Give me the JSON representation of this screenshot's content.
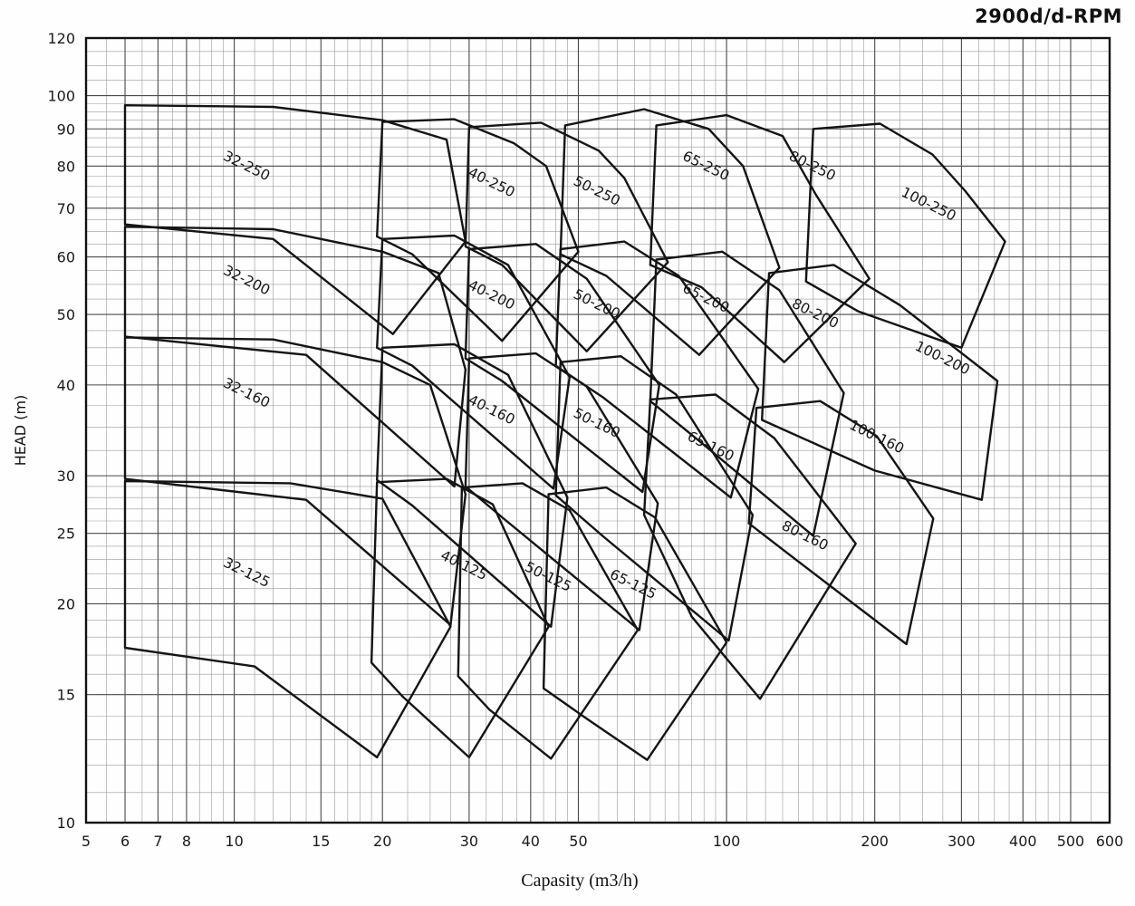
{
  "header": {
    "title": "2900d/d-RPM"
  },
  "chart_data": {
    "type": "line",
    "subtype": "pump-selection-envelope-chart",
    "title": "2900d/d-RPM",
    "xlabel": "Capasity (m3/h)",
    "ylabel": "HEAD (m)",
    "x_scale": "log",
    "y_scale": "log",
    "xlim": [
      5,
      600
    ],
    "ylim": [
      10,
      120
    ],
    "x_ticks": [
      5,
      6,
      7,
      8,
      10,
      15,
      20,
      30,
      40,
      50,
      100,
      200,
      300,
      400,
      500,
      600
    ],
    "y_ticks": [
      10,
      15,
      20,
      25,
      30,
      40,
      50,
      60,
      70,
      80,
      90,
      100,
      120
    ],
    "grid": true,
    "legend": false,
    "envelopes": [
      {
        "label": "32-250",
        "label_pos": [
          10.5,
          79
        ],
        "points": [
          [
            6,
            97
          ],
          [
            12,
            96.5
          ],
          [
            20,
            92.5
          ],
          [
            27,
            87
          ],
          [
            29.5,
            63
          ],
          [
            21,
            47
          ],
          [
            12,
            63.5
          ],
          [
            6,
            66.5
          ]
        ]
      },
      {
        "label": "40-250",
        "label_pos": [
          33,
          75
        ],
        "points": [
          [
            20,
            92
          ],
          [
            28,
            92.8
          ],
          [
            37,
            86
          ],
          [
            43,
            80
          ],
          [
            50,
            61
          ],
          [
            35,
            46
          ],
          [
            23,
            60.5
          ],
          [
            19.5,
            64
          ]
        ]
      },
      {
        "label": "50-250",
        "label_pos": [
          54,
          73
        ],
        "points": [
          [
            30,
            90.5
          ],
          [
            42,
            91.8
          ],
          [
            55,
            84
          ],
          [
            62,
            77
          ],
          [
            76,
            59
          ],
          [
            52,
            44.5
          ],
          [
            35,
            58.5
          ],
          [
            29.5,
            62
          ]
        ]
      },
      {
        "label": "65-250",
        "label_pos": [
          90,
          79
        ],
        "points": [
          [
            47,
            91
          ],
          [
            68,
            95.8
          ],
          [
            92,
            90
          ],
          [
            108,
            80
          ],
          [
            128,
            58
          ],
          [
            88,
            44
          ],
          [
            57,
            56.5
          ],
          [
            46,
            60.5
          ]
        ]
      },
      {
        "label": "80-250",
        "label_pos": [
          148,
          79
        ],
        "points": [
          [
            72,
            91
          ],
          [
            100,
            94
          ],
          [
            130,
            88
          ],
          [
            152,
            73
          ],
          [
            195,
            56
          ],
          [
            131,
            43
          ],
          [
            89,
            54.5
          ],
          [
            70,
            58.5
          ]
        ]
      },
      {
        "label": "100-250",
        "label_pos": [
          255,
          70
        ],
        "points": [
          [
            150,
            90
          ],
          [
            205,
            91.5
          ],
          [
            262,
            83
          ],
          [
            305,
            74
          ],
          [
            368,
            63
          ],
          [
            300,
            45
          ],
          [
            185,
            50.5
          ],
          [
            145,
            55.5
          ]
        ]
      },
      {
        "label": "32-200",
        "label_pos": [
          10.5,
          55
        ],
        "points": [
          [
            6,
            66
          ],
          [
            12,
            65.5
          ],
          [
            20,
            61
          ],
          [
            26,
            57
          ],
          [
            29.5,
            42
          ],
          [
            28,
            29
          ],
          [
            14,
            44
          ],
          [
            6,
            46.6
          ]
        ]
      },
      {
        "label": "40-200",
        "label_pos": [
          33,
          52.5
        ],
        "points": [
          [
            20,
            63.5
          ],
          [
            28,
            64.2
          ],
          [
            36,
            58.5
          ],
          [
            48,
            41
          ],
          [
            44.5,
            28.8
          ],
          [
            23,
            42.5
          ],
          [
            19.5,
            45
          ]
        ]
      },
      {
        "label": "50-200",
        "label_pos": [
          54,
          51
        ],
        "points": [
          [
            30,
            61.5
          ],
          [
            41,
            62.5
          ],
          [
            52,
            56
          ],
          [
            73,
            40
          ],
          [
            67.5,
            28.5
          ],
          [
            35,
            40.5
          ],
          [
            29.5,
            43.5
          ]
        ]
      },
      {
        "label": "65-200",
        "label_pos": [
          90,
          52
        ],
        "points": [
          [
            46,
            61.5
          ],
          [
            62,
            63
          ],
          [
            80,
            56.5
          ],
          [
            116,
            39.5
          ],
          [
            102,
            28
          ],
          [
            56,
            38.5
          ],
          [
            45,
            42.5
          ]
        ]
      },
      {
        "label": "80-200",
        "label_pos": [
          150,
          49.5
        ],
        "points": [
          [
            72,
            59.5
          ],
          [
            98,
            61
          ],
          [
            128,
            54
          ],
          [
            173,
            39
          ],
          [
            150,
            24.8
          ],
          [
            88,
            33.5
          ],
          [
            70,
            38
          ]
        ]
      },
      {
        "label": "100-200",
        "label_pos": [
          272,
          43
        ],
        "points": [
          [
            122,
            57
          ],
          [
            165,
            58.5
          ],
          [
            225,
            51.5
          ],
          [
            355,
            40.5
          ],
          [
            330,
            27.8
          ],
          [
            200,
            30.5
          ],
          [
            118,
            35.8
          ]
        ]
      },
      {
        "label": "32-160",
        "label_pos": [
          10.5,
          38.5
        ],
        "points": [
          [
            6,
            46.5
          ],
          [
            12,
            46.2
          ],
          [
            20,
            43
          ],
          [
            25,
            40
          ],
          [
            29.5,
            28.3
          ],
          [
            27.5,
            18.7
          ],
          [
            14,
            27.8
          ],
          [
            6,
            29.7
          ]
        ]
      },
      {
        "label": "40-160",
        "label_pos": [
          33,
          36.5
        ],
        "points": [
          [
            20,
            45
          ],
          [
            28,
            45.5
          ],
          [
            36,
            41.3
          ],
          [
            47.5,
            28
          ],
          [
            44,
            18.6
          ],
          [
            23,
            27.3
          ],
          [
            19.5,
            29.6
          ]
        ]
      },
      {
        "label": "50-160",
        "label_pos": [
          54,
          35
        ],
        "points": [
          [
            30,
            43.5
          ],
          [
            41,
            44.2
          ],
          [
            52,
            39.8
          ],
          [
            72.5,
            27.5
          ],
          [
            66.5,
            18.4
          ],
          [
            35,
            26.3
          ],
          [
            29.5,
            29
          ]
        ]
      },
      {
        "label": "65-160",
        "label_pos": [
          92,
          32.5
        ],
        "points": [
          [
            46,
            43
          ],
          [
            61,
            43.8
          ],
          [
            79,
            38.8
          ],
          [
            113,
            26.5
          ],
          [
            101,
            17.8
          ],
          [
            56,
            24.8
          ],
          [
            45,
            28.2
          ]
        ]
      },
      {
        "label": "80-160",
        "label_pos": [
          143,
          24.5
        ],
        "points": [
          [
            70,
            38.2
          ],
          [
            95,
            38.8
          ],
          [
            125,
            33.8
          ],
          [
            183,
            24.2
          ],
          [
            117,
            14.8
          ],
          [
            85,
            19.2
          ],
          [
            68,
            26.5
          ]
        ]
      },
      {
        "label": "100-160",
        "label_pos": [
          200,
          33.5
        ],
        "points": [
          [
            115,
            37.2
          ],
          [
            155,
            38
          ],
          [
            202,
            34
          ],
          [
            263,
            26.2
          ],
          [
            232,
            17.6
          ],
          [
            136,
            23.2
          ],
          [
            111,
            25.8
          ]
        ]
      },
      {
        "label": "32-125",
        "label_pos": [
          10.5,
          21.8
        ],
        "points": [
          [
            6,
            29.5
          ],
          [
            13,
            29.3
          ],
          [
            20,
            27.9
          ],
          [
            27.5,
            18.6
          ],
          [
            19.5,
            12.3
          ],
          [
            11,
            16.4
          ],
          [
            6,
            17.4
          ]
        ]
      },
      {
        "label": "40-125",
        "label_pos": [
          29,
          22.3
        ],
        "points": [
          [
            19.5,
            29.4
          ],
          [
            27,
            29.7
          ],
          [
            33.5,
            27.4
          ],
          [
            43.5,
            18.6
          ],
          [
            30,
            12.3
          ],
          [
            22,
            14.9
          ],
          [
            19,
            16.6
          ]
        ]
      },
      {
        "label": "50-125",
        "label_pos": [
          43,
          21.5
        ],
        "points": [
          [
            29,
            28.9
          ],
          [
            38.5,
            29.3
          ],
          [
            48,
            26.9
          ],
          [
            66,
            18.4
          ],
          [
            44,
            12.25
          ],
          [
            33,
            14.3
          ],
          [
            28.5,
            15.9
          ]
        ]
      },
      {
        "label": "65-125",
        "label_pos": [
          64,
          21
        ],
        "points": [
          [
            43.5,
            28.3
          ],
          [
            57,
            28.9
          ],
          [
            71.5,
            26.3
          ],
          [
            100,
            17.7
          ],
          [
            69,
            12.2
          ],
          [
            52,
            13.9
          ],
          [
            42.5,
            15.3
          ]
        ]
      }
    ]
  }
}
